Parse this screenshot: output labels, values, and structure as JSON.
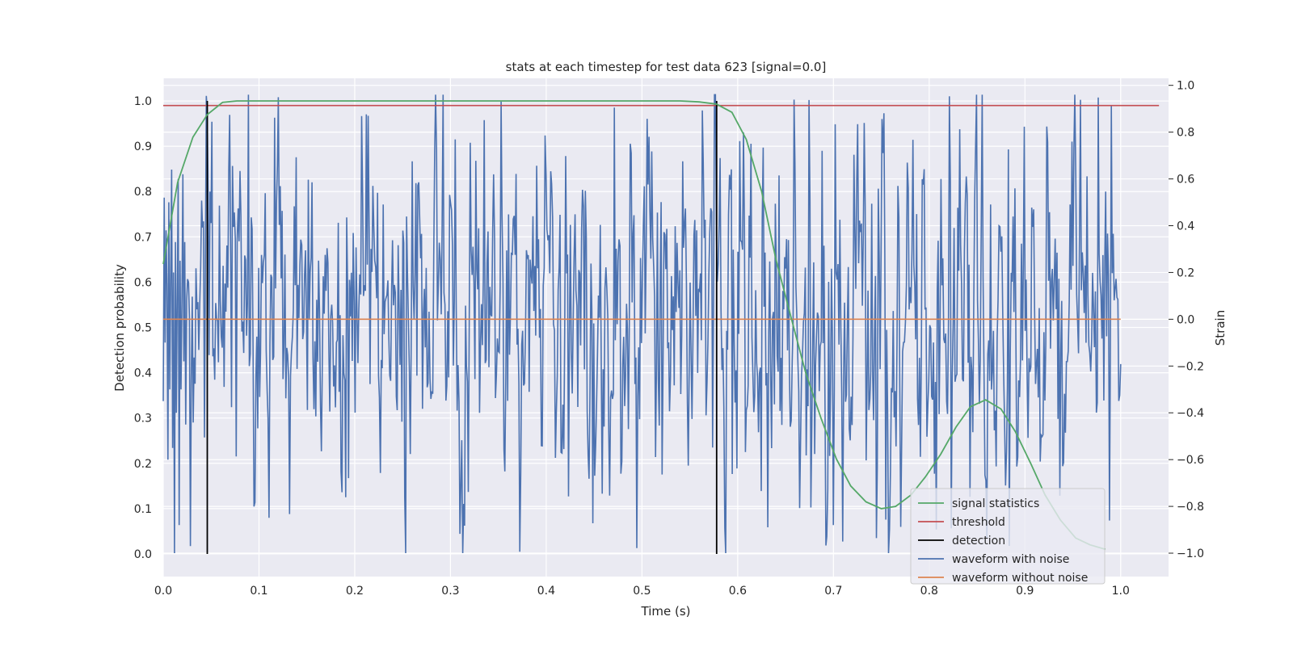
{
  "chart_data": {
    "type": "line",
    "title": "stats at each timestep for test data 623 [signal=0.0]",
    "xlabel": "Time (s)",
    "ylabel_left": "Detection probability",
    "ylabel_right": "Strain",
    "xlim": [
      0.0,
      1.05
    ],
    "ylim_left": [
      -0.05,
      1.05
    ],
    "ylim_right": [
      -1.1,
      1.03
    ],
    "xticks": [
      0.0,
      0.1,
      0.2,
      0.3,
      0.4,
      0.5,
      0.6,
      0.7,
      0.8,
      0.9,
      1.0
    ],
    "xtick_labels": [
      "0.0",
      "0.1",
      "0.2",
      "0.3",
      "0.4",
      "0.5",
      "0.6",
      "0.7",
      "0.8",
      "0.9",
      "1.0"
    ],
    "yticks_left": [
      0.0,
      0.1,
      0.2,
      0.3,
      0.4,
      0.5,
      0.6,
      0.7,
      0.8,
      0.9,
      1.0
    ],
    "ytick_labels_left": [
      "0.0",
      "0.1",
      "0.2",
      "0.3",
      "0.4",
      "0.5",
      "0.6",
      "0.7",
      "0.8",
      "0.9",
      "1.0"
    ],
    "yticks_right": [
      -1.0,
      -0.8,
      -0.6,
      -0.4,
      -0.2,
      0.0,
      0.2,
      0.4,
      0.6,
      0.8,
      1.0
    ],
    "ytick_labels_right": [
      "−1.0",
      "−0.8",
      "−0.6",
      "−0.4",
      "−0.2",
      "0.0",
      "0.2",
      "0.4",
      "0.6",
      "0.8",
      "1.0"
    ],
    "grid": true,
    "legend_position": "lower-right",
    "series": [
      {
        "name": "signal statistics",
        "color": "#55a868",
        "axis": "left",
        "x": [
          0.0,
          0.015,
          0.031,
          0.046,
          0.062,
          0.077,
          0.093,
          0.11,
          0.15,
          0.2,
          0.3,
          0.4,
          0.5,
          0.54,
          0.56,
          0.578,
          0.594,
          0.609,
          0.625,
          0.64,
          0.656,
          0.671,
          0.687,
          0.703,
          0.718,
          0.734,
          0.75,
          0.765,
          0.781,
          0.796,
          0.812,
          0.828,
          0.843,
          0.859,
          0.875,
          0.89,
          0.906,
          0.921,
          0.937,
          0.953,
          0.968,
          0.984
        ],
        "y": [
          0.64,
          0.82,
          0.92,
          0.97,
          0.997,
          1.0,
          1.0,
          1.0,
          1.0,
          1.0,
          1.0,
          1.0,
          1.0,
          1.0,
          0.998,
          0.993,
          0.975,
          0.915,
          0.8,
          0.65,
          0.52,
          0.4,
          0.3,
          0.21,
          0.15,
          0.115,
          0.1,
          0.105,
          0.13,
          0.17,
          0.22,
          0.28,
          0.325,
          0.34,
          0.32,
          0.27,
          0.2,
          0.13,
          0.075,
          0.035,
          0.02,
          0.01
        ]
      },
      {
        "name": "threshold",
        "color": "#c44e52",
        "axis": "left",
        "x": [
          0.0,
          1.04
        ],
        "y": [
          0.99,
          0.99
        ]
      },
      {
        "name": "detection",
        "color": "#000000",
        "axis": "left",
        "x": [
          0.046,
          0.578
        ],
        "y_range": [
          0.0,
          1.0
        ]
      },
      {
        "name": "waveform with noise",
        "color": "#4c72b0",
        "axis": "right",
        "x_range": [
          0.0,
          1.0
        ],
        "points": 1024,
        "y_min": -1.0,
        "y_max": 0.96,
        "y_sample": [
          -0.35,
          0.52,
          -0.1,
          0.38,
          0.15,
          -0.6,
          0.5,
          -0.3,
          0.2,
          0.64,
          -0.55,
          0.2,
          -1.0,
          0.33,
          -0.4,
          0.12,
          0.6,
          -0.88,
          0.25,
          -0.3,
          0.1,
          0.62,
          -0.18,
          0.33,
          -0.45,
          0.08
        ]
      },
      {
        "name": "waveform without noise",
        "color": "#dd8452",
        "axis": "right",
        "x": [
          0.0,
          1.0
        ],
        "y": [
          0.0,
          0.0
        ]
      }
    ]
  }
}
